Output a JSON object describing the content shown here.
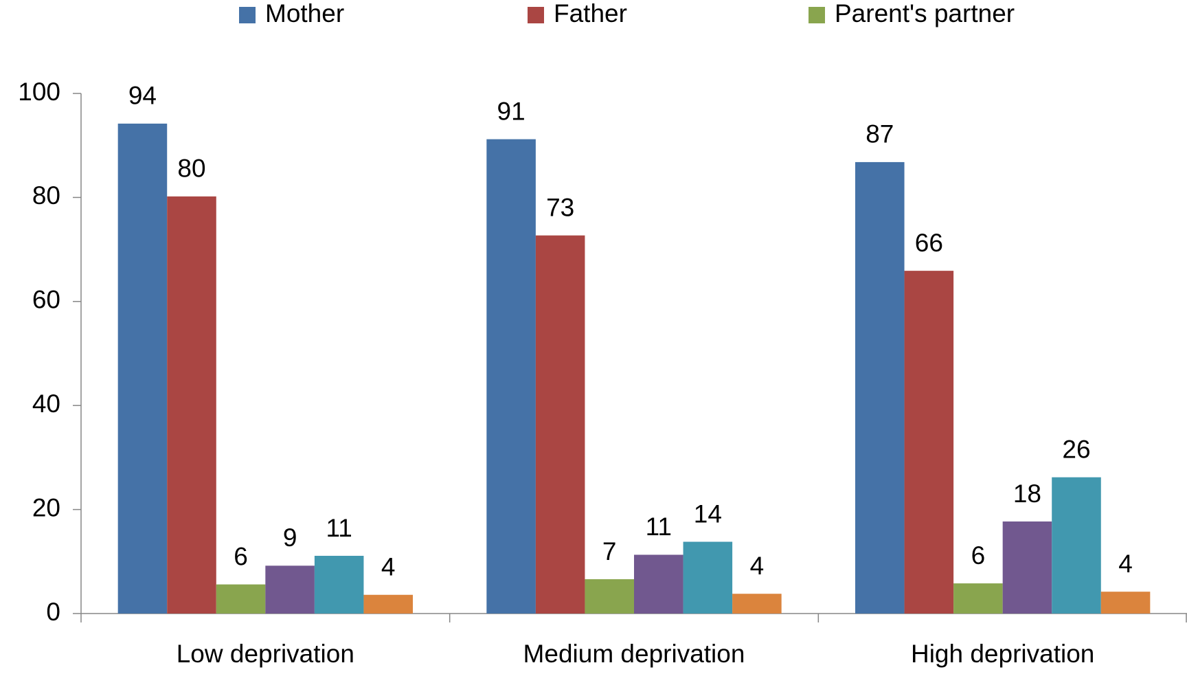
{
  "chart_data": {
    "type": "bar",
    "categories": [
      "Low deprivation",
      "Medium deprivation",
      "High deprivation"
    ],
    "series": [
      {
        "name": "Mother",
        "color": "#4572a7",
        "values": [
          94.2,
          91.2,
          86.8
        ],
        "value_labels": [
          "94",
          "91",
          "87"
        ]
      },
      {
        "name": "Father",
        "color": "#aa4643",
        "values": [
          80.2,
          72.7,
          65.9
        ],
        "value_labels": [
          "80",
          "73",
          "66"
        ]
      },
      {
        "name": "Parent's partner",
        "color": "#89a54e",
        "values": [
          5.6,
          6.6,
          5.8
        ],
        "value_labels": [
          "6",
          "7",
          "6"
        ]
      },
      {
        "color": "#71588f",
        "values": [
          9.2,
          11.3,
          17.7
        ],
        "value_labels": [
          "9",
          "11",
          "18"
        ]
      },
      {
        "color": "#4198af",
        "values": [
          11.1,
          13.8,
          26.2
        ],
        "value_labels": [
          "11",
          "14",
          "26"
        ]
      },
      {
        "color": "#db843d",
        "values": [
          3.6,
          3.8,
          4.2
        ],
        "value_labels": [
          "4",
          "4",
          "4"
        ]
      }
    ],
    "ylim": [
      0,
      100
    ],
    "yticks": [
      0,
      20,
      40,
      60,
      80,
      100
    ],
    "grid": false,
    "legend": "top"
  }
}
